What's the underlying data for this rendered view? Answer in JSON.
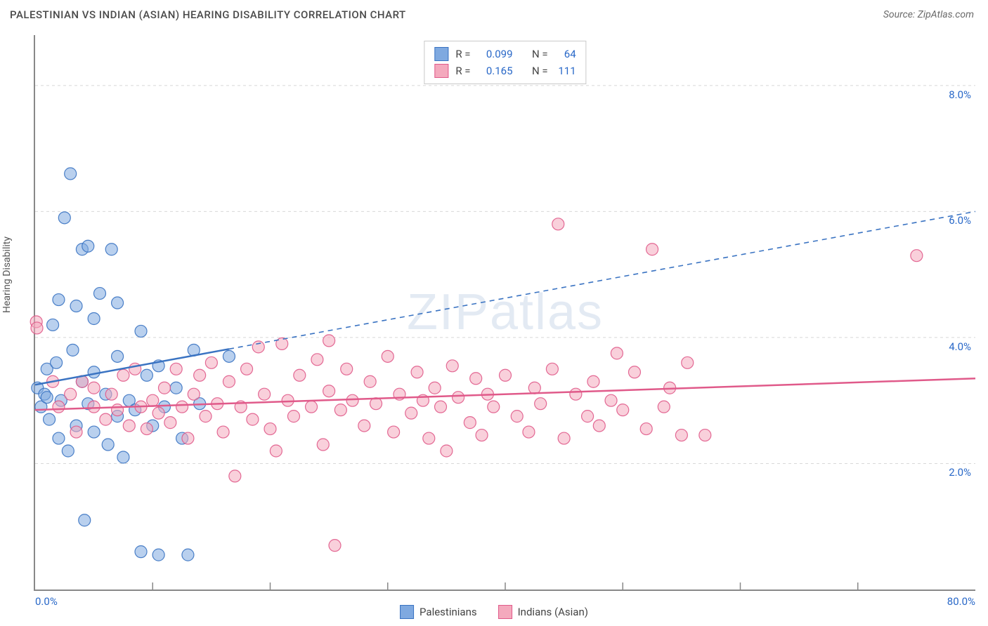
{
  "title": "PALESTINIAN VS INDIAN (ASIAN) HEARING DISABILITY CORRELATION CHART",
  "source": "Source: ZipAtlas.com",
  "watermark": "ZIPatlas",
  "y_axis_label": "Hearing Disability",
  "chart": {
    "type": "scatter",
    "xlim": [
      0,
      80
    ],
    "ylim": [
      0,
      8.8
    ],
    "x_tick_min_label": "0.0%",
    "x_tick_max_label": "80.0%",
    "y_ticks": [
      2.0,
      4.0,
      6.0,
      8.0
    ],
    "y_tick_labels": [
      "2.0%",
      "4.0%",
      "6.0%",
      "8.0%"
    ],
    "x_minor_ticks": [
      10,
      20,
      30,
      40,
      50,
      60,
      70
    ],
    "grid_color": "#d8d8d8",
    "axis_color": "#888888",
    "background_color": "#ffffff",
    "marker_radius": 8.5,
    "marker_opacity": 0.55,
    "series": [
      {
        "name": "Palestinians",
        "color_fill": "#7fa9e0",
        "color_stroke": "#3a73c2",
        "R": "0.099",
        "N": "64",
        "trend": {
          "y_at_x0": 3.25,
          "y_at_x80": 6.0,
          "solid_until_x": 16.5
        },
        "points": [
          [
            0.2,
            3.2
          ],
          [
            0.5,
            2.9
          ],
          [
            0.8,
            3.1
          ],
          [
            1.0,
            3.5
          ],
          [
            1.0,
            3.05
          ],
          [
            1.2,
            2.7
          ],
          [
            1.5,
            4.2
          ],
          [
            1.8,
            3.6
          ],
          [
            2.0,
            2.4
          ],
          [
            2.0,
            4.6
          ],
          [
            2.2,
            3.0
          ],
          [
            2.5,
            5.9
          ],
          [
            2.8,
            2.2
          ],
          [
            3.0,
            6.6
          ],
          [
            3.2,
            3.8
          ],
          [
            3.5,
            4.5
          ],
          [
            3.5,
            2.6
          ],
          [
            4.0,
            5.4
          ],
          [
            4.0,
            3.3
          ],
          [
            4.2,
            1.1
          ],
          [
            4.5,
            2.95
          ],
          [
            4.5,
            5.45
          ],
          [
            5.0,
            4.3
          ],
          [
            5.0,
            2.5
          ],
          [
            5.0,
            3.45
          ],
          [
            5.5,
            4.7
          ],
          [
            6.0,
            3.1
          ],
          [
            6.2,
            2.3
          ],
          [
            6.5,
            5.4
          ],
          [
            7.0,
            3.7
          ],
          [
            7.0,
            4.55
          ],
          [
            7.0,
            2.75
          ],
          [
            7.5,
            2.1
          ],
          [
            8.0,
            3.0
          ],
          [
            8.5,
            2.85
          ],
          [
            9.0,
            4.1
          ],
          [
            9.0,
            0.6
          ],
          [
            9.5,
            3.4
          ],
          [
            10.0,
            2.6
          ],
          [
            10.5,
            3.55
          ],
          [
            10.5,
            0.55
          ],
          [
            11.0,
            2.9
          ],
          [
            12.0,
            3.2
          ],
          [
            12.5,
            2.4
          ],
          [
            13.0,
            0.55
          ],
          [
            13.5,
            3.8
          ],
          [
            14.0,
            2.95
          ],
          [
            16.5,
            3.7
          ]
        ]
      },
      {
        "name": "Indians (Asian)",
        "color_fill": "#f4a9bd",
        "color_stroke": "#e05a8a",
        "R": "0.165",
        "N": "111",
        "trend": {
          "y_at_x0": 2.85,
          "y_at_x80": 3.35,
          "solid_until_x": 80
        },
        "points": [
          [
            0.1,
            4.25
          ],
          [
            0.15,
            4.15
          ],
          [
            1.5,
            3.3
          ],
          [
            2.0,
            2.9
          ],
          [
            3.0,
            3.1
          ],
          [
            3.5,
            2.5
          ],
          [
            4.0,
            3.3
          ],
          [
            5.0,
            2.9
          ],
          [
            5.0,
            3.2
          ],
          [
            6.0,
            2.7
          ],
          [
            6.5,
            3.1
          ],
          [
            7.0,
            2.85
          ],
          [
            7.5,
            3.4
          ],
          [
            8.0,
            2.6
          ],
          [
            8.5,
            3.5
          ],
          [
            9.0,
            2.9
          ],
          [
            9.5,
            2.55
          ],
          [
            10.0,
            3.0
          ],
          [
            10.5,
            2.8
          ],
          [
            11.0,
            3.2
          ],
          [
            11.5,
            2.65
          ],
          [
            12.0,
            3.5
          ],
          [
            12.5,
            2.9
          ],
          [
            13.0,
            2.4
          ],
          [
            13.5,
            3.1
          ],
          [
            14.0,
            3.4
          ],
          [
            14.5,
            2.75
          ],
          [
            15.0,
            3.6
          ],
          [
            15.5,
            2.95
          ],
          [
            16.0,
            2.5
          ],
          [
            16.5,
            3.3
          ],
          [
            17.0,
            1.8
          ],
          [
            17.5,
            2.9
          ],
          [
            18.0,
            3.5
          ],
          [
            18.5,
            2.7
          ],
          [
            19.0,
            3.85
          ],
          [
            19.5,
            3.1
          ],
          [
            20.0,
            2.55
          ],
          [
            20.5,
            2.2
          ],
          [
            21.0,
            3.9
          ],
          [
            21.5,
            3.0
          ],
          [
            22.0,
            2.75
          ],
          [
            22.5,
            3.4
          ],
          [
            23.5,
            2.9
          ],
          [
            24.0,
            3.65
          ],
          [
            24.5,
            2.3
          ],
          [
            25.0,
            3.15
          ],
          [
            25.0,
            3.95
          ],
          [
            25.5,
            0.7
          ],
          [
            26.0,
            2.85
          ],
          [
            26.5,
            3.5
          ],
          [
            27.0,
            3.0
          ],
          [
            28.0,
            2.6
          ],
          [
            28.5,
            3.3
          ],
          [
            29.0,
            2.95
          ],
          [
            30.0,
            3.7
          ],
          [
            30.5,
            2.5
          ],
          [
            31.0,
            3.1
          ],
          [
            32.0,
            2.8
          ],
          [
            32.5,
            3.45
          ],
          [
            33.0,
            3.0
          ],
          [
            33.5,
            2.4
          ],
          [
            34.0,
            3.2
          ],
          [
            34.5,
            2.9
          ],
          [
            35.0,
            2.2
          ],
          [
            35.5,
            3.55
          ],
          [
            36.0,
            3.05
          ],
          [
            37.0,
            2.65
          ],
          [
            37.5,
            3.35
          ],
          [
            38.0,
            2.45
          ],
          [
            38.5,
            3.1
          ],
          [
            39.0,
            2.9
          ],
          [
            40.0,
            3.4
          ],
          [
            41.0,
            2.75
          ],
          [
            42.0,
            2.5
          ],
          [
            42.5,
            3.2
          ],
          [
            43.0,
            2.95
          ],
          [
            44.0,
            3.5
          ],
          [
            44.5,
            5.8
          ],
          [
            45.0,
            2.4
          ],
          [
            46.0,
            3.1
          ],
          [
            47.0,
            2.75
          ],
          [
            47.5,
            3.3
          ],
          [
            48.0,
            2.6
          ],
          [
            49.0,
            3.0
          ],
          [
            49.5,
            3.75
          ],
          [
            50.0,
            2.85
          ],
          [
            51.0,
            3.45
          ],
          [
            52.0,
            2.55
          ],
          [
            52.5,
            5.4
          ],
          [
            53.5,
            2.9
          ],
          [
            54.0,
            3.2
          ],
          [
            55.0,
            2.45
          ],
          [
            55.5,
            3.6
          ],
          [
            57.0,
            2.45
          ],
          [
            75.0,
            5.3
          ]
        ]
      }
    ]
  },
  "bottom_legend": {
    "items": [
      {
        "label": "Palestinians",
        "fill": "#7fa9e0",
        "stroke": "#3a73c2"
      },
      {
        "label": "Indians (Asian)",
        "fill": "#f4a9bd",
        "stroke": "#e05a8a"
      }
    ]
  }
}
